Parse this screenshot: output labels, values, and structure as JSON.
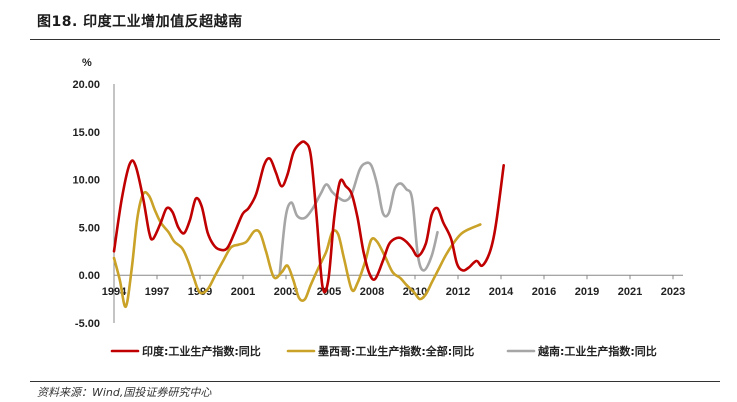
{
  "header": {
    "title": "图18. 印度工业增加值反超越南"
  },
  "footer": {
    "source": "资料来源：Wind,国投证券研究中心"
  },
  "chart_data": {
    "type": "line",
    "ylabel": "%",
    "ylim": [
      -5,
      20
    ],
    "yticks": [
      "20.00",
      "15.00",
      "10.00",
      "5.00",
      "0.00",
      "-5.00"
    ],
    "xlim": [
      1994,
      2023.2
    ],
    "xticks": [
      "1994",
      "1997",
      "1999",
      "2001",
      "2003",
      "2005",
      "2008",
      "2010",
      "2012",
      "2014",
      "2016",
      "2019",
      "2021",
      "2023"
    ],
    "legend_position": "bottom",
    "series": [
      {
        "name": "印度:工业生产指数:同比",
        "color": "#C00000",
        "points": [
          [
            1994.0,
            2.5
          ],
          [
            1994.4,
            8.0
          ],
          [
            1994.8,
            11.6
          ],
          [
            1995.1,
            11.5
          ],
          [
            1995.5,
            8.0
          ],
          [
            1995.8,
            4.5
          ],
          [
            1996.0,
            3.8
          ],
          [
            1996.4,
            5.5
          ],
          [
            1996.7,
            7.0
          ],
          [
            1997.0,
            6.6
          ],
          [
            1997.3,
            5.0
          ],
          [
            1997.6,
            4.4
          ],
          [
            1997.9,
            5.8
          ],
          [
            1998.2,
            8.0
          ],
          [
            1998.5,
            7.2
          ],
          [
            1998.8,
            4.5
          ],
          [
            1999.1,
            3.2
          ],
          [
            1999.4,
            2.7
          ],
          [
            1999.8,
            2.8
          ],
          [
            2000.2,
            4.5
          ],
          [
            2000.6,
            6.4
          ],
          [
            2000.9,
            7.0
          ],
          [
            2001.3,
            8.5
          ],
          [
            2001.7,
            11.5
          ],
          [
            2002.0,
            12.2
          ],
          [
            2002.3,
            10.8
          ],
          [
            2002.6,
            9.3
          ],
          [
            2002.9,
            10.5
          ],
          [
            2003.2,
            12.8
          ],
          [
            2003.5,
            13.7
          ],
          [
            2003.8,
            13.9
          ],
          [
            2004.1,
            12.5
          ],
          [
            2004.4,
            6.0
          ],
          [
            2004.7,
            -1.2
          ],
          [
            2005.0,
            -0.5
          ],
          [
            2005.3,
            6.0
          ],
          [
            2005.6,
            9.8
          ],
          [
            2005.9,
            9.3
          ],
          [
            2006.2,
            8.5
          ],
          [
            2006.5,
            6.0
          ],
          [
            2006.8,
            2.5
          ],
          [
            2007.1,
            0.2
          ],
          [
            2007.4,
            -0.4
          ],
          [
            2007.8,
            1.5
          ],
          [
            2008.1,
            3.2
          ],
          [
            2008.4,
            3.8
          ],
          [
            2008.7,
            3.9
          ],
          [
            2009.0,
            3.5
          ],
          [
            2009.3,
            2.8
          ],
          [
            2009.6,
            2.0
          ],
          [
            2010.0,
            3.3
          ],
          [
            2010.3,
            6.3
          ],
          [
            2010.6,
            7.0
          ],
          [
            2010.9,
            5.5
          ],
          [
            2011.3,
            3.8
          ],
          [
            2011.6,
            1.2
          ],
          [
            2011.9,
            0.5
          ],
          [
            2012.2,
            0.8
          ],
          [
            2012.6,
            1.5
          ],
          [
            2012.9,
            1.0
          ],
          [
            2013.3,
            2.5
          ],
          [
            2013.6,
            5.3
          ],
          [
            2014.0,
            11.5
          ]
        ]
      },
      {
        "name": "墨西哥:工业生产指数:全部:同比",
        "color": "#C9A227",
        "points": [
          [
            1994.0,
            1.8
          ],
          [
            1994.3,
            -0.5
          ],
          [
            1994.6,
            -3.3
          ],
          [
            1994.9,
            0.5
          ],
          [
            1995.2,
            6.0
          ],
          [
            1995.5,
            8.5
          ],
          [
            1995.8,
            8.3
          ],
          [
            1996.1,
            6.8
          ],
          [
            1996.4,
            5.5
          ],
          [
            1996.8,
            4.5
          ],
          [
            1997.1,
            3.5
          ],
          [
            1997.5,
            2.8
          ],
          [
            1997.8,
            1.5
          ],
          [
            1998.1,
            -0.3
          ],
          [
            1998.4,
            -1.8
          ],
          [
            1998.8,
            -1.5
          ],
          [
            1999.2,
            0.0
          ],
          [
            1999.6,
            1.5
          ],
          [
            2000.0,
            2.9
          ],
          [
            2000.4,
            3.2
          ],
          [
            2000.8,
            3.5
          ],
          [
            2001.2,
            4.6
          ],
          [
            2001.5,
            4.4
          ],
          [
            2001.8,
            2.5
          ],
          [
            2002.2,
            -0.2
          ],
          [
            2002.6,
            0.3
          ],
          [
            2002.9,
            1.0
          ],
          [
            2003.2,
            -0.5
          ],
          [
            2003.5,
            -2.4
          ],
          [
            2003.8,
            -2.5
          ],
          [
            2004.1,
            -1.0
          ],
          [
            2004.5,
            0.8
          ],
          [
            2004.9,
            2.5
          ],
          [
            2005.2,
            4.5
          ],
          [
            2005.5,
            4.3
          ],
          [
            2005.8,
            1.8
          ],
          [
            2006.2,
            -1.5
          ],
          [
            2006.5,
            -0.8
          ],
          [
            2006.9,
            1.5
          ],
          [
            2007.2,
            3.7
          ],
          [
            2007.5,
            3.5
          ],
          [
            2007.9,
            2.0
          ],
          [
            2008.3,
            0.3
          ],
          [
            2008.7,
            -0.3
          ],
          [
            2009.0,
            -1.0
          ],
          [
            2009.4,
            -1.8
          ],
          [
            2009.7,
            -2.5
          ],
          [
            2010.0,
            -2.0
          ],
          [
            2010.3,
            -0.8
          ],
          [
            2010.7,
            0.8
          ],
          [
            2011.0,
            2.0
          ],
          [
            2011.4,
            3.3
          ],
          [
            2011.8,
            4.3
          ],
          [
            2012.2,
            4.8
          ],
          [
            2012.8,
            5.3
          ]
        ]
      },
      {
        "name": "越南:工业生产指数:同比",
        "color": "#A6A6A6",
        "points": [
          [
            2002.5,
            0.0
          ],
          [
            2002.8,
            6.0
          ],
          [
            2003.1,
            7.6
          ],
          [
            2003.4,
            6.2
          ],
          [
            2003.8,
            6.0
          ],
          [
            2004.2,
            7.0
          ],
          [
            2004.6,
            8.5
          ],
          [
            2004.9,
            9.5
          ],
          [
            2005.2,
            8.7
          ],
          [
            2005.6,
            8.0
          ],
          [
            2005.9,
            7.8
          ],
          [
            2006.2,
            8.5
          ],
          [
            2006.6,
            11.0
          ],
          [
            2006.9,
            11.7
          ],
          [
            2007.2,
            11.5
          ],
          [
            2007.5,
            9.5
          ],
          [
            2007.8,
            6.5
          ],
          [
            2008.1,
            6.5
          ],
          [
            2008.4,
            9.0
          ],
          [
            2008.7,
            9.6
          ],
          [
            2009.0,
            9.0
          ],
          [
            2009.3,
            8.0
          ],
          [
            2009.6,
            2.0
          ],
          [
            2009.9,
            0.5
          ],
          [
            2010.3,
            2.0
          ],
          [
            2010.6,
            4.5
          ]
        ]
      }
    ]
  }
}
